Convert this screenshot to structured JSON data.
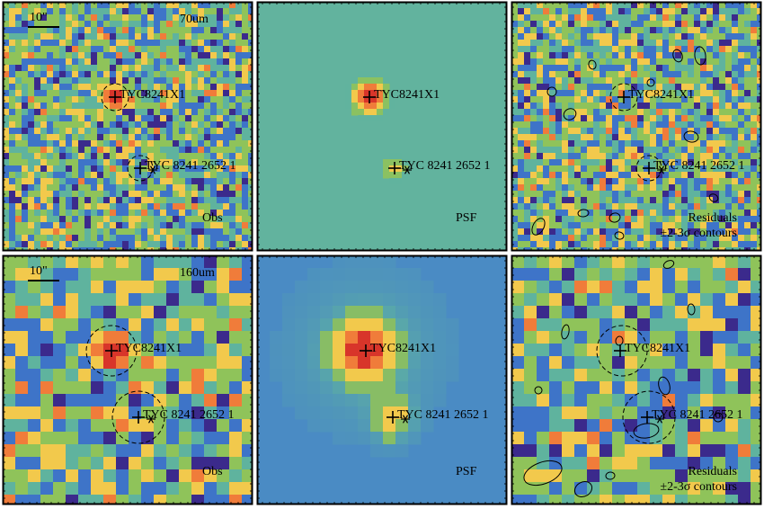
{
  "figure": {
    "rows": [
      {
        "band": "70um",
        "scale_bar_label": "10\"",
        "panels": [
          {
            "kind": "obs",
            "label": "Obs",
            "label2": ""
          },
          {
            "kind": "psf",
            "label": "PSF",
            "label2": ""
          },
          {
            "kind": "residual",
            "label": "Residuals",
            "label2": "±2-3σ contours"
          }
        ]
      },
      {
        "band": "160um",
        "scale_bar_label": "10\"",
        "panels": [
          {
            "kind": "obs",
            "label": "Obs",
            "label2": ""
          },
          {
            "kind": "psf",
            "label": "PSF",
            "label2": ""
          },
          {
            "kind": "residual",
            "label": "Residuals",
            "label2": "±2-3σ contours"
          }
        ]
      }
    ],
    "sources": [
      {
        "name": "TYC8241X1",
        "marker": "plus"
      },
      {
        "name": "TYC 8241 2652 1",
        "marker": "plus-star"
      }
    ],
    "colors": {
      "low": "#3b2a8c",
      "blue": "#3e74c8",
      "teal": "#5fb39e",
      "green": "#8fc35a",
      "yellow": "#f2c94c",
      "orange": "#f07c3a",
      "red": "#d8352a",
      "psf70_bg": "#62b39e",
      "psf160_bg": "#4a8bc4"
    }
  }
}
